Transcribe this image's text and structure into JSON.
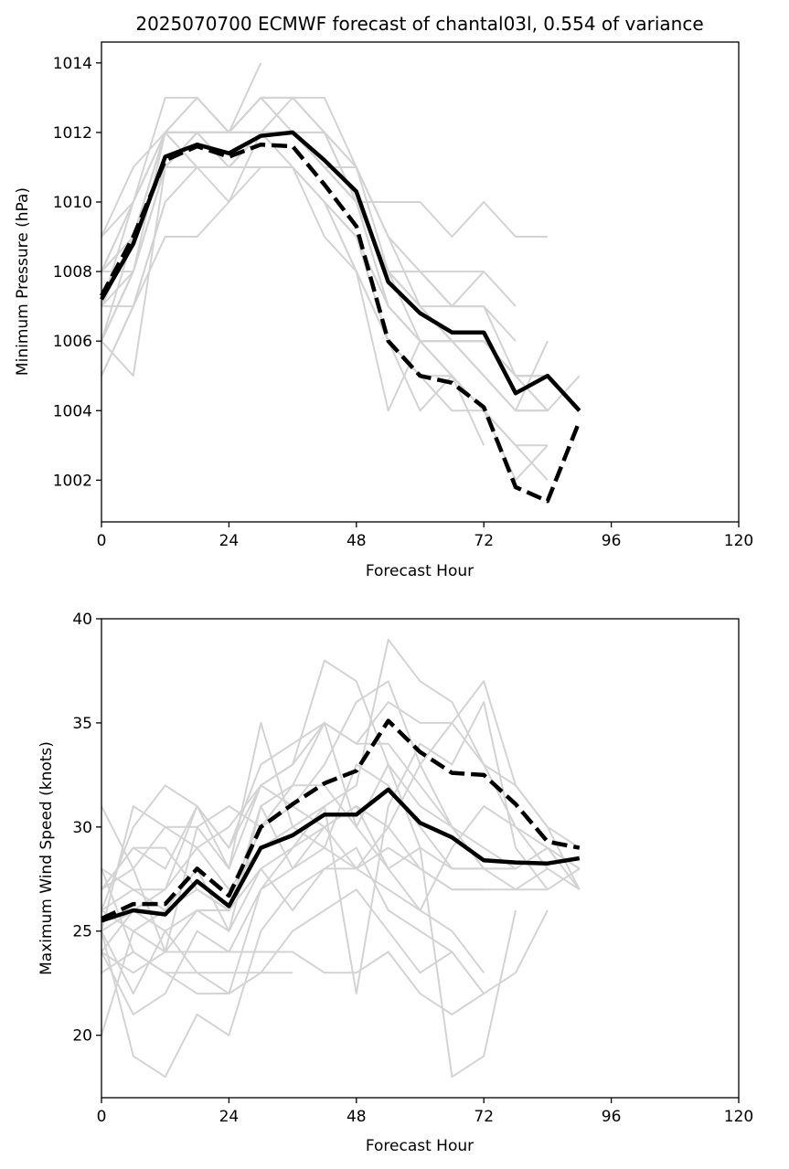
{
  "title": "2025070700 ECMWF forecast of chantal03l, 0.554 of variance",
  "colors": {
    "ensemble": "#d3d3d3",
    "mean": "#000000",
    "background": "#ffffff"
  },
  "chart_data": [
    {
      "type": "line",
      "xlabel": "Forecast Hour",
      "ylabel": "Minimum Pressure (hPa)",
      "xlim": [
        0,
        120
      ],
      "ylim": [
        1000.8,
        1014.6
      ],
      "xticks": [
        0,
        24,
        48,
        72,
        96,
        120
      ],
      "yticks": [
        1002,
        1004,
        1006,
        1008,
        1010,
        1012,
        1014
      ],
      "grid": false,
      "x": [
        0,
        6,
        12,
        18,
        24,
        30,
        36,
        42,
        48,
        54,
        60,
        66,
        72,
        78,
        84,
        90
      ],
      "series": [
        {
          "style": "solid",
          "color": "#000000",
          "values": [
            1007.2,
            1008.8,
            1011.3,
            1011.65,
            1011.4,
            1011.9,
            1012.0,
            1011.2,
            1010.3,
            1007.7,
            1006.8,
            1006.25,
            1006.25,
            1004.5,
            1005.0,
            1004.0
          ]
        },
        {
          "style": "dashed",
          "color": "#000000",
          "values": [
            1007.3,
            1009.0,
            1011.2,
            1011.6,
            1011.3,
            1011.65,
            1011.6,
            1010.5,
            1009.3,
            1006.0,
            1005.0,
            1004.8,
            1004.1,
            1001.8,
            1001.4,
            1003.7
          ]
        }
      ],
      "ensemble": [
        [
          1007,
          1009,
          1012,
          1012,
          1011,
          1012,
          1012,
          1011,
          1010,
          1008,
          1007,
          1006,
          1006,
          1005,
          1005,
          1004
        ],
        [
          1008,
          1010,
          1012,
          1012,
          1012,
          1012,
          1012,
          1011,
          1011,
          1009,
          1008,
          1007,
          1007
        ],
        [
          1006,
          1008,
          1011,
          1012,
          1011,
          1011,
          1011,
          1010,
          1009,
          1006,
          1005,
          1004,
          1004,
          1003
        ],
        [
          1009,
          1010,
          1013,
          1013,
          1012,
          1013,
          1013,
          1012,
          1011,
          1008,
          1007,
          1006,
          1006,
          1005,
          1005
        ],
        [
          1005,
          1007,
          1010,
          1011,
          1011,
          1011,
          1011,
          1010,
          1008,
          1004,
          1006,
          1005,
          1003
        ],
        [
          1007,
          1009,
          1011,
          1012,
          1012,
          1013,
          1012,
          1011,
          1010,
          1007,
          1006,
          1006,
          1005,
          1004,
          1006
        ],
        [
          1008,
          1008,
          1012,
          1011,
          1011,
          1012,
          1012,
          1012,
          1010,
          1008,
          1008,
          1007,
          1008,
          1007
        ],
        [
          1006,
          1005,
          1011,
          1011,
          1010,
          1011,
          1011,
          1010,
          1009,
          1007,
          1006,
          1005,
          1004,
          1002,
          1003
        ],
        [
          1007,
          1009,
          1012,
          1013,
          1012,
          1014
        ],
        [
          1008,
          1009,
          1012,
          1011,
          1011,
          1012,
          1012,
          1011,
          1010,
          1008,
          1007,
          1006,
          1006,
          1005,
          1004
        ],
        [
          1006,
          1008,
          1011,
          1012,
          1012,
          1012,
          1011,
          1009,
          1008,
          1006,
          1004,
          1005,
          1004,
          1003,
          1002
        ],
        [
          1007,
          1007,
          1009,
          1009,
          1010,
          1012,
          1012,
          1012,
          1010,
          1010,
          1010,
          1009,
          1010,
          1009,
          1009
        ],
        [
          1008,
          1010,
          1012,
          1012,
          1012,
          1012,
          1012,
          1011,
          1010,
          1008,
          1008,
          1008,
          1008
        ],
        [
          1009,
          1011,
          1012,
          1012,
          1011,
          1012,
          1013,
          1012,
          1011,
          1009,
          1007,
          1007,
          1007,
          1005,
          1005
        ],
        [
          1006,
          1008,
          1011,
          1011,
          1011,
          1011,
          1011,
          1010,
          1008,
          1006,
          1005,
          1005,
          1004,
          1003,
          1003
        ],
        [
          1007,
          1010,
          1012,
          1012,
          1012,
          1013,
          1012,
          1011,
          1010,
          1008,
          1007,
          1006,
          1005,
          1004,
          1004
        ],
        [
          1005,
          1007,
          1010,
          1011,
          1011,
          1011,
          1011,
          1010,
          1009,
          1007,
          1006,
          1005,
          1004
        ],
        [
          1008,
          1009,
          1011,
          1012,
          1012,
          1012,
          1012,
          1011,
          1010,
          1008,
          1006,
          1006,
          1006,
          1005,
          1004,
          1005
        ],
        [
          1007,
          1008,
          1011,
          1011,
          1011,
          1012,
          1012,
          1011,
          1010,
          1007,
          1006,
          1006,
          1005,
          1004,
          1004
        ],
        [
          1006,
          1009,
          1012,
          1013,
          1012,
          1013,
          1013,
          1013,
          1011,
          1009,
          1008,
          1007,
          1007,
          1006
        ]
      ]
    },
    {
      "type": "line",
      "xlabel": "Forecast Hour",
      "ylabel": "Maximum Wind Speed (knots)",
      "xlim": [
        0,
        120
      ],
      "ylim": [
        17,
        40
      ],
      "xticks": [
        0,
        24,
        48,
        72,
        96,
        120
      ],
      "yticks": [
        20,
        25,
        30,
        35,
        40
      ],
      "grid": false,
      "x": [
        0,
        6,
        12,
        18,
        24,
        30,
        36,
        42,
        48,
        54,
        60,
        66,
        72,
        78,
        84,
        90
      ],
      "series": [
        {
          "style": "solid",
          "color": "#000000",
          "values": [
            25.5,
            26.0,
            25.8,
            27.4,
            26.2,
            29.0,
            29.6,
            30.6,
            30.6,
            31.8,
            30.2,
            29.5,
            28.4,
            28.3,
            28.25,
            28.5
          ]
        },
        {
          "style": "dashed",
          "color": "#000000",
          "values": [
            25.6,
            26.3,
            26.3,
            28.0,
            26.7,
            30.0,
            31.1,
            32.1,
            32.7,
            35.1,
            33.6,
            32.6,
            32.5,
            31.1,
            29.3,
            29.0
          ]
        }
      ],
      "ensemble": [
        [
          20,
          25,
          26,
          27,
          26,
          30,
          32,
          35,
          30,
          33,
          31,
          30,
          29,
          28,
          29,
          28
        ],
        [
          31,
          28,
          24,
          30,
          28,
          35,
          30,
          31,
          32,
          39,
          37,
          36,
          33,
          32,
          30,
          29
        ],
        [
          25,
          19,
          18,
          21,
          20,
          25,
          27,
          28,
          29,
          26,
          25,
          24,
          22,
          23,
          26
        ],
        [
          27,
          29,
          28,
          31,
          29,
          33,
          34,
          35,
          34,
          34,
          32,
          30,
          28,
          28,
          29,
          27
        ],
        [
          24,
          26,
          25,
          26,
          25,
          28,
          29,
          30,
          31,
          30,
          28,
          27,
          27
        ],
        [
          26,
          30,
          32,
          31,
          28,
          32,
          33,
          38,
          37,
          33,
          29,
          28,
          28,
          28
        ],
        [
          25,
          31,
          30,
          29,
          30,
          32,
          31,
          30,
          28,
          30,
          33,
          35,
          37,
          32,
          30,
          27
        ],
        [
          28,
          24,
          23,
          22,
          22,
          23,
          25,
          26,
          27,
          25,
          23,
          24
        ],
        [
          25,
          22,
          25,
          23,
          22,
          27,
          29,
          31,
          22,
          31,
          34,
          33,
          36,
          29,
          27
        ],
        [
          26,
          27,
          27,
          29,
          27,
          29,
          30,
          29,
          28,
          27,
          26,
          29,
          31,
          30,
          29,
          28
        ],
        [
          23,
          24,
          23,
          23,
          23,
          23,
          23
        ],
        [
          27,
          28,
          30,
          30,
          31,
          30,
          31,
          33,
          36,
          37,
          33,
          30,
          28,
          27,
          27,
          28
        ],
        [
          24,
          21,
          22,
          25,
          24,
          27,
          28,
          29,
          33,
          32,
          30,
          28,
          28
        ],
        [
          28,
          27,
          26,
          28,
          25,
          31,
          32,
          32,
          30,
          28,
          29,
          18,
          19,
          26
        ],
        [
          26,
          25,
          24,
          24,
          24,
          24,
          24,
          23,
          23,
          24,
          22,
          21,
          22
        ],
        [
          25,
          26,
          27,
          31,
          29,
          32,
          33,
          35,
          34,
          36,
          35,
          35,
          33,
          30,
          28
        ],
        [
          27,
          29,
          29,
          27,
          26,
          28,
          26,
          28,
          28,
          29,
          28,
          27,
          27,
          27,
          28,
          27
        ],
        [
          24,
          23,
          24,
          26,
          26,
          31,
          28,
          30,
          31,
          28,
          26,
          25,
          23
        ]
      ]
    }
  ]
}
